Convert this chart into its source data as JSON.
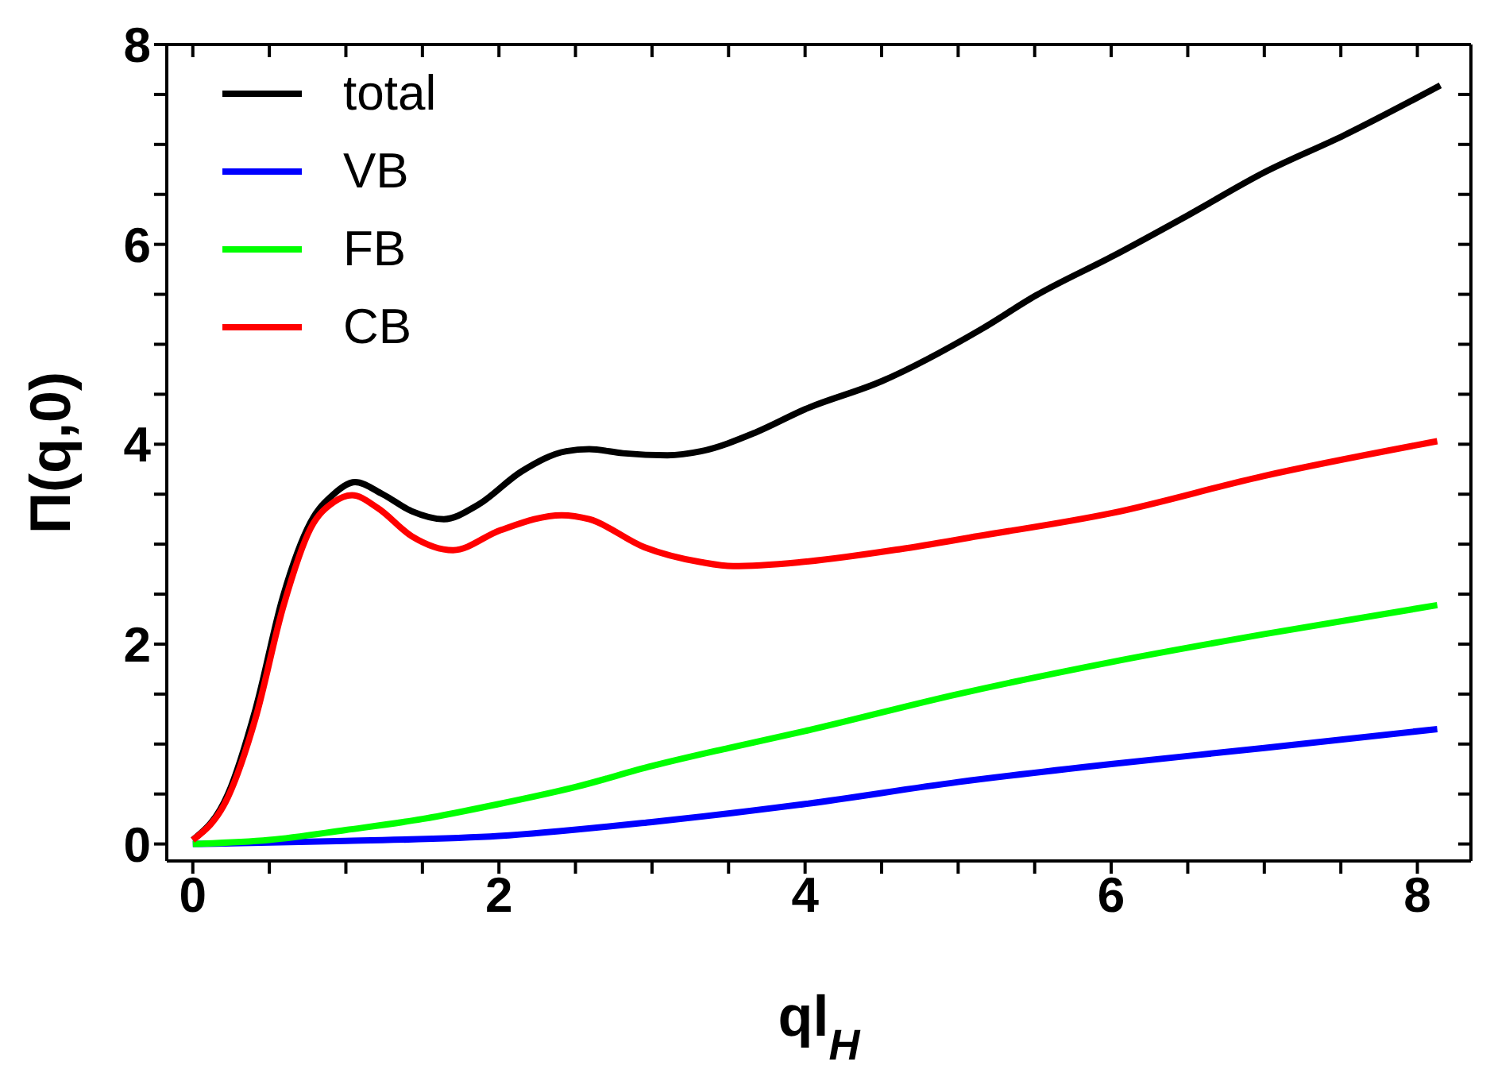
{
  "chart_data": {
    "type": "line",
    "xlabel": "ql$_{H}$",
    "ylabel": "Π(q,0)",
    "xlim": [
      -0.17,
      8.35
    ],
    "ylim": [
      -0.17,
      8
    ],
    "xticks": [
      0,
      {
        "value": 0.5,
        "label": null
      },
      {
        "value": 1,
        "label": null
      },
      {
        "value": 1.5,
        "label": null
      },
      2,
      {
        "value": 2.5,
        "label": null
      },
      {
        "value": 3,
        "label": null
      },
      {
        "value": 3.5,
        "label": null
      },
      4,
      {
        "value": 4.5,
        "label": null
      },
      {
        "value": 5,
        "label": null
      },
      {
        "value": 5.5,
        "label": null
      },
      6,
      {
        "value": 6.5,
        "label": null
      },
      {
        "value": 7,
        "label": null
      },
      {
        "value": 7.5,
        "label": null
      },
      8
    ],
    "yticks": [
      0,
      {
        "value": 0.5,
        "label": null
      },
      {
        "value": 1,
        "label": null
      },
      {
        "value": 1.5,
        "label": null
      },
      2,
      {
        "value": 2.5,
        "label": null
      },
      {
        "value": 3,
        "label": null
      },
      {
        "value": 3.5,
        "label": null
      },
      4,
      {
        "value": 4.5,
        "label": null
      },
      {
        "value": 5,
        "label": null
      },
      {
        "value": 5.5,
        "label": null
      },
      6,
      {
        "value": 6.5,
        "label": null
      },
      {
        "value": 7,
        "label": null
      },
      {
        "value": 7.5,
        "label": null
      },
      8
    ],
    "grid": false,
    "legend": "top left",
    "marker": "none",
    "line_style": "solid",
    "series": [
      {
        "name": "total",
        "color": "#000000",
        "x": [
          0,
          0.23,
          0.41,
          0.59,
          0.77,
          0.92,
          1.06,
          1.24,
          1.43,
          1.64,
          1.86,
          2.15,
          2.44,
          2.59,
          2.81,
          3.1,
          3.32,
          3.68,
          4.0,
          4.5,
          5.15,
          5.51,
          6.02,
          6.5,
          7.0,
          7.52,
          8.15
        ],
        "values": [
          0.04,
          0.5,
          1.35,
          2.48,
          3.22,
          3.5,
          3.62,
          3.5,
          3.33,
          3.25,
          3.39,
          3.73,
          3.93,
          3.95,
          3.91,
          3.89,
          3.93,
          4.12,
          4.35,
          4.63,
          5.15,
          5.49,
          5.89,
          6.29,
          6.72,
          7.09,
          7.59
        ]
      },
      {
        "name": "VB",
        "color": "#0000ff",
        "x": [
          0,
          1.0,
          2.0,
          3.0,
          4.0,
          5.0,
          6.0,
          7.0,
          8.13
        ],
        "values": [
          0,
          0.03,
          0.08,
          0.22,
          0.4,
          0.62,
          0.8,
          0.96,
          1.15
        ]
      },
      {
        "name": "FB",
        "color": "#00ff00",
        "x": [
          0,
          0.5,
          1.0,
          1.5,
          2.0,
          2.5,
          3.0,
          3.5,
          4.0,
          5.0,
          6.0,
          7.0,
          8.13
        ],
        "values": [
          0,
          0.04,
          0.14,
          0.25,
          0.4,
          0.57,
          0.78,
          0.96,
          1.13,
          1.5,
          1.82,
          2.1,
          2.39
        ]
      },
      {
        "name": "CB",
        "color": "#ff0000",
        "x": [
          0,
          0.23,
          0.41,
          0.59,
          0.77,
          0.92,
          1.04,
          1.21,
          1.43,
          1.7,
          2.01,
          2.41,
          2.59,
          2.95,
          3.32,
          3.53,
          3.97,
          4.62,
          5.13,
          6.0,
          6.99,
          8.13
        ],
        "values": [
          0.04,
          0.47,
          1.26,
          2.37,
          3.16,
          3.42,
          3.49,
          3.36,
          3.08,
          2.94,
          3.14,
          3.29,
          3.25,
          2.97,
          2.82,
          2.78,
          2.82,
          2.95,
          3.08,
          3.31,
          3.68,
          4.03
        ]
      }
    ]
  }
}
